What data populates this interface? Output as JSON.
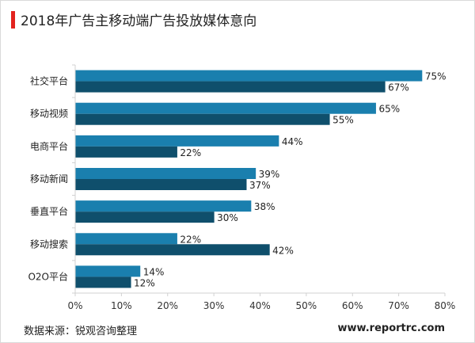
{
  "header": {
    "title": "2018年广告主移动端广告投放媒体意向"
  },
  "footer": {
    "source": "数据来源：锐观咨询整理",
    "site": "www.reportrc.com"
  },
  "colors": {
    "accent_bar": "#e3231e",
    "series_2018_top": "#1a7fae",
    "series_2018_bottom": "#0f4f6c"
  },
  "chart_data": {
    "type": "bar",
    "orientation": "horizontal",
    "categories": [
      "社交平台",
      "移动视频",
      "电商平台",
      "移动新闻",
      "垂直平台",
      "移动搜索",
      "O2O平台"
    ],
    "series": [
      {
        "values": [
          75,
          65,
          44,
          39,
          38,
          22,
          14
        ]
      },
      {
        "values": [
          67,
          55,
          22,
          37,
          30,
          42,
          12
        ]
      }
    ],
    "value_labels": [
      [
        "75%",
        "65%",
        "44%",
        "39%",
        "38%",
        "22%",
        "14%"
      ],
      [
        "67%",
        "55%",
        "22%",
        "37%",
        "30%",
        "42%",
        "12%"
      ]
    ],
    "x_ticks": [
      "0%",
      "10%",
      "20%",
      "30%",
      "40%",
      "50%",
      "60%",
      "70%",
      "80%"
    ],
    "xlim": [
      0,
      80
    ],
    "grid": false,
    "legend": "none"
  }
}
